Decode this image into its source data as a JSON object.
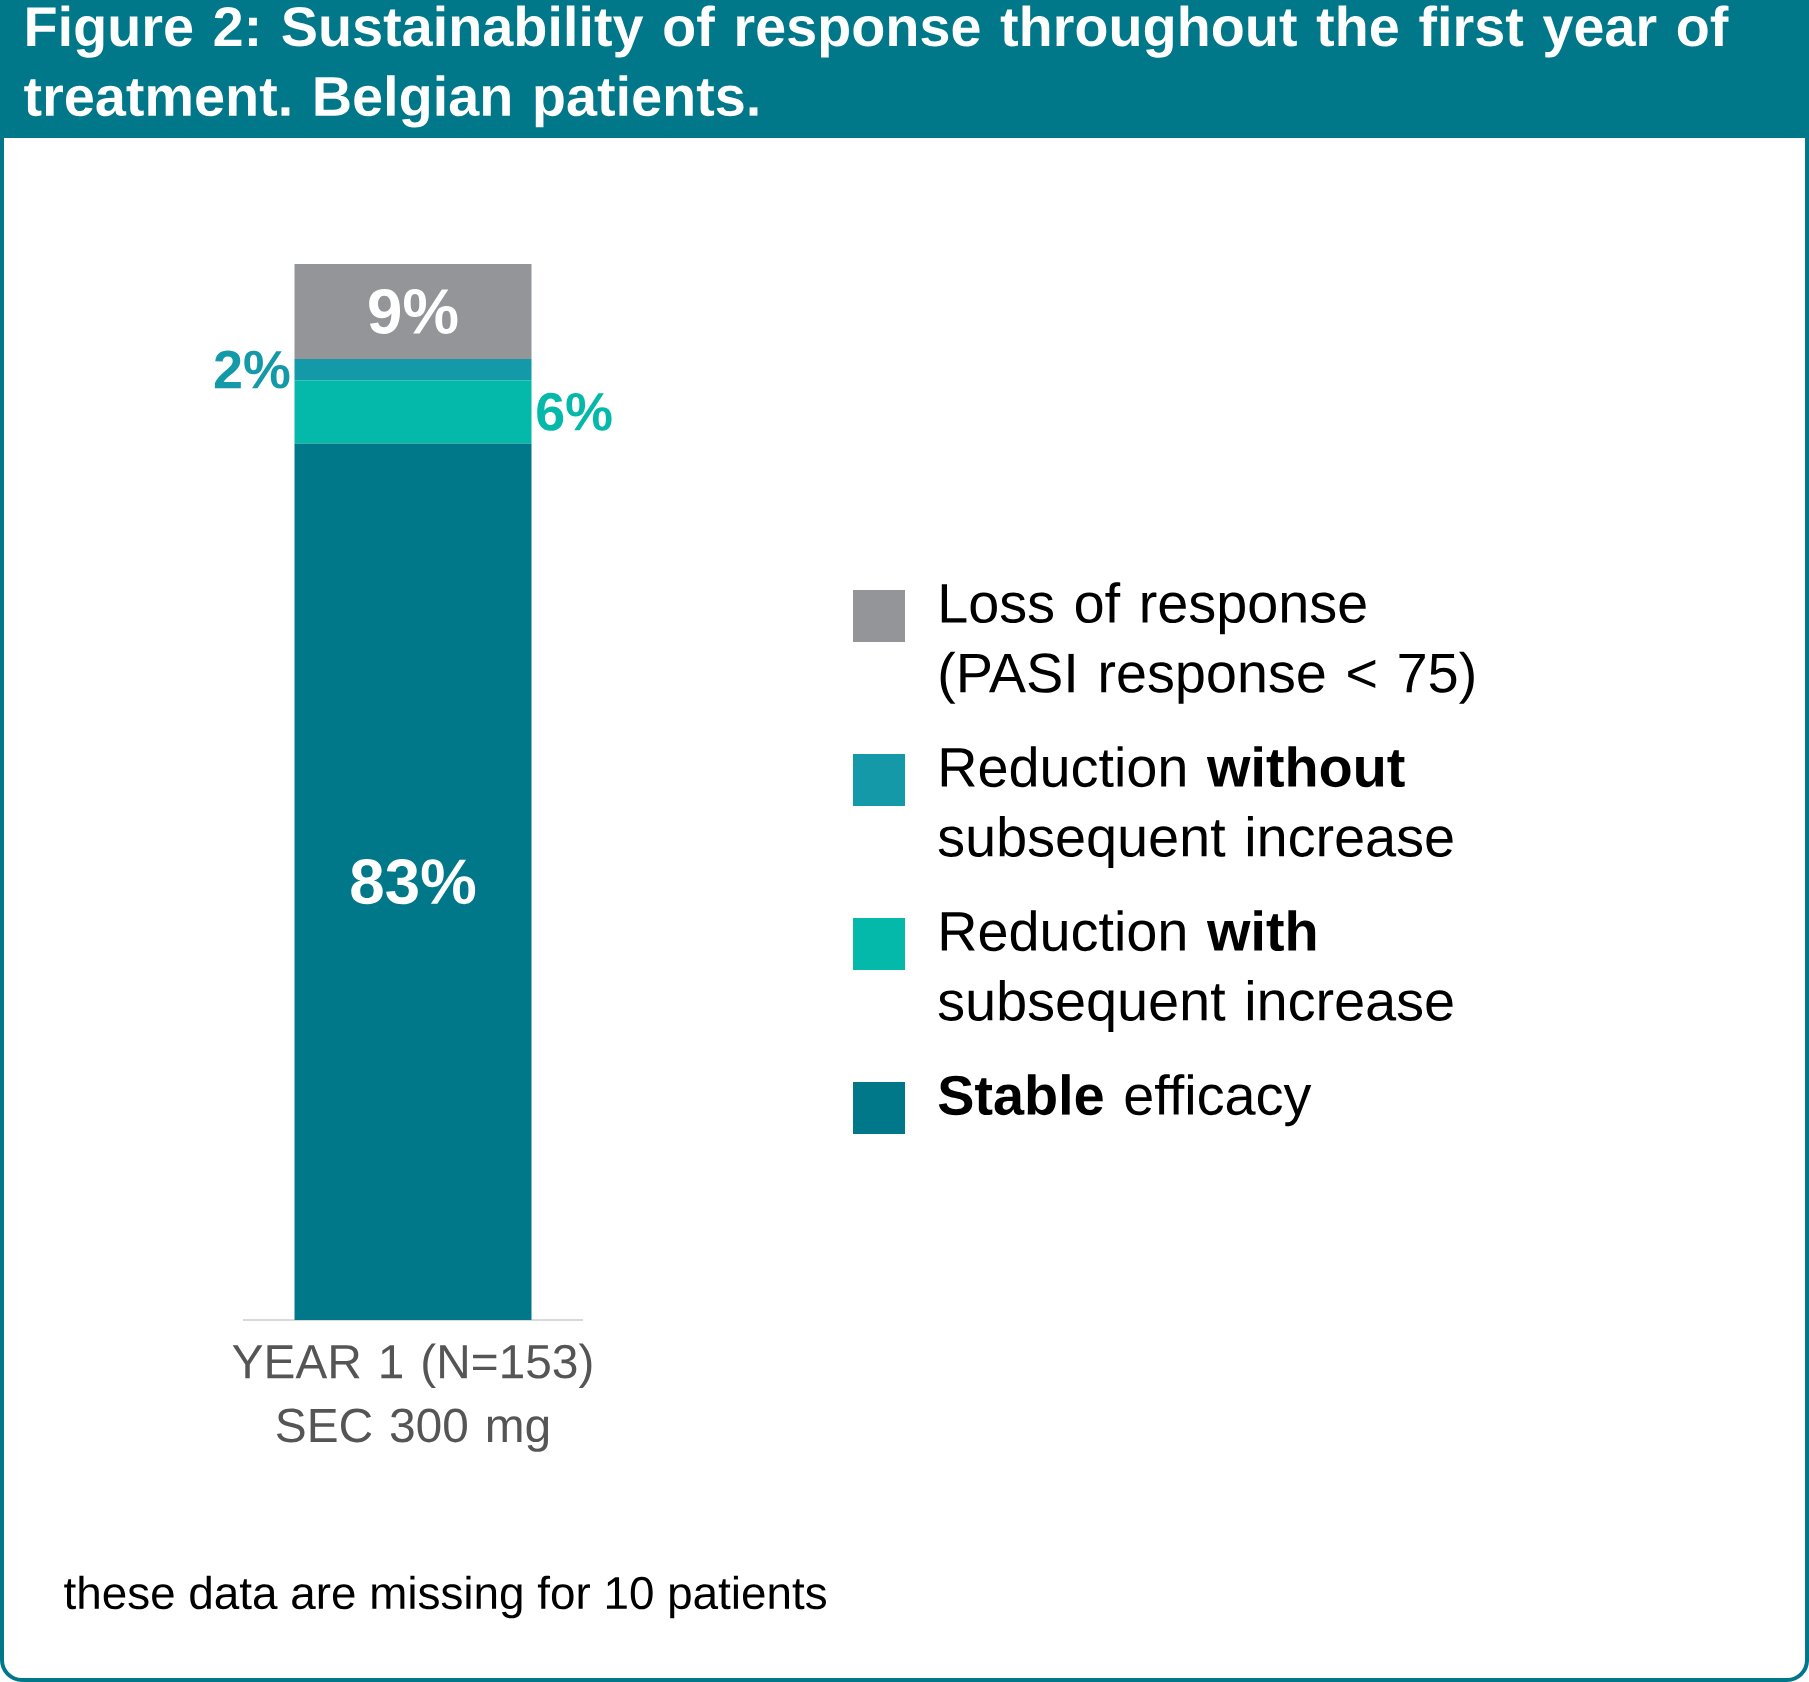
{
  "chart_data": {
    "type": "bar",
    "stacked": true,
    "title": "Figure 2: Sustainability of response throughout the first year of treatment. Belgian patients.",
    "categories": [
      "YEAR 1 (N=153) SEC 300 mg"
    ],
    "legend": "right",
    "series": [
      {
        "name": "**Stable** efficacy",
        "color": "#00788a",
        "values": [
          83
        ],
        "value_labels": [
          "83%"
        ]
      },
      {
        "name": "Reduction **with** subsequent increase",
        "color": "#05b9aa",
        "values": [
          6
        ],
        "value_labels": [
          "6%"
        ]
      },
      {
        "name": "Reduction **without** subsequent increase",
        "color": "#1399a8",
        "values": [
          2
        ],
        "value_labels": [
          "2%"
        ]
      },
      {
        "name": "Loss of response (PASI response < 75)",
        "color": "#939598",
        "values": [
          9
        ],
        "value_labels": [
          "9%"
        ]
      }
    ],
    "annotations": [
      "these data are missing for 10 patients"
    ]
  }
}
